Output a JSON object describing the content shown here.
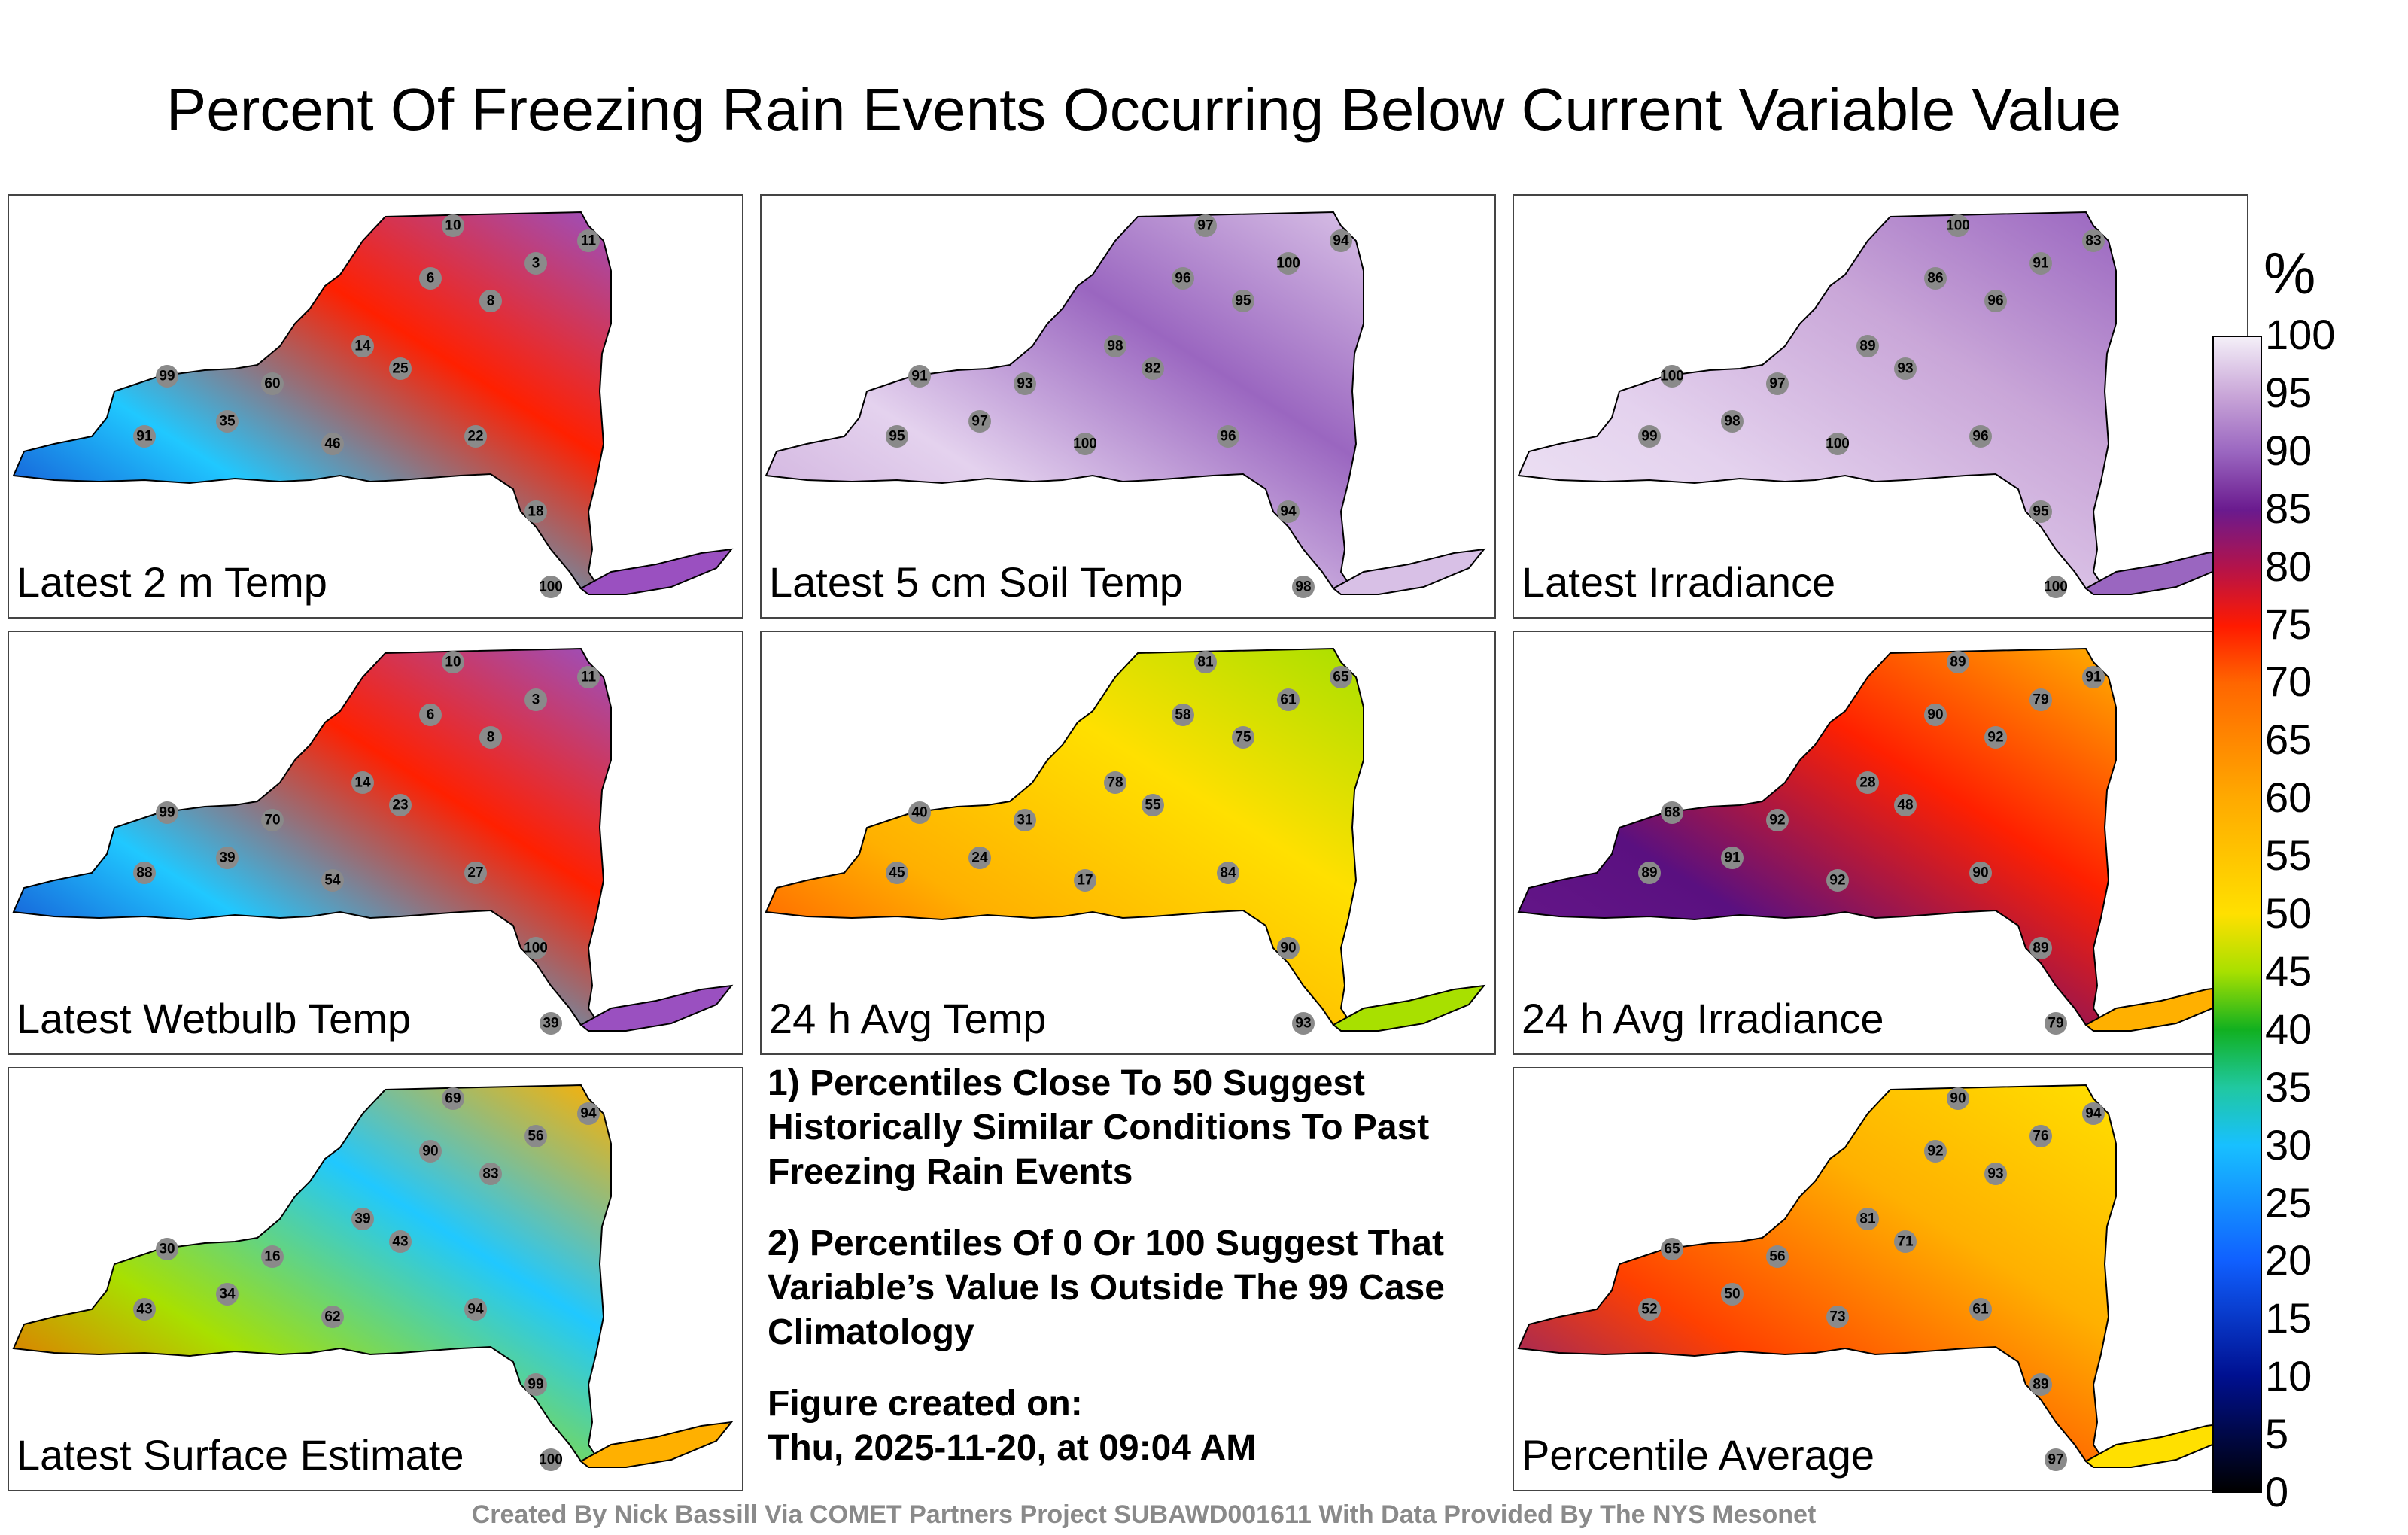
{
  "title": "Percent Of Freezing Rain Events Occurring Below Current Variable Value",
  "colorbar": {
    "unit": "%",
    "ticks": [
      "100",
      "95",
      "90",
      "85",
      "80",
      "75",
      "70",
      "65",
      "60",
      "55",
      "50",
      "45",
      "40",
      "35",
      "30",
      "25",
      "20",
      "15",
      "10",
      "5",
      "0"
    ]
  },
  "panels": [
    {
      "label": "Latest 2 m Temp",
      "colors": [
        "#1020c0",
        "#20c8ff",
        "#ff2000",
        "#9a50c0"
      ],
      "stations": [
        "10",
        "8",
        "11",
        "6",
        "3",
        "14",
        "25",
        "99",
        "60",
        "35",
        "91",
        "46",
        "22",
        "18",
        "100"
      ]
    },
    {
      "label": "Latest 5 cm Soil Temp",
      "colors": [
        "#c9a6d8",
        "#e4d2ee",
        "#9a66c0",
        "#d8c0e6"
      ],
      "stations": [
        "97",
        "95",
        "94",
        "96",
        "100",
        "98",
        "82",
        "91",
        "93",
        "97",
        "95",
        "100",
        "96",
        "94",
        "98"
      ]
    },
    {
      "label": "Latest Irradiance",
      "colors": [
        "#f0e8f6",
        "#e4d2ee",
        "#c9a6d8",
        "#9a66c0"
      ],
      "stations": [
        "100",
        "96",
        "83",
        "86",
        "91",
        "89",
        "93",
        "100",
        "97",
        "98",
        "99",
        "100",
        "96",
        "95",
        "100"
      ]
    },
    {
      "label": "Latest Wetbulb Temp",
      "colors": [
        "#1020c0",
        "#20c8ff",
        "#ff2000",
        "#9a50c0"
      ],
      "stations": [
        "10",
        "8",
        "11",
        "6",
        "3",
        "14",
        "23",
        "99",
        "70",
        "39",
        "88",
        "54",
        "27",
        "100",
        "39"
      ]
    },
    {
      "label": "24 h Avg Temp",
      "colors": [
        "#ff4000",
        "#ffb000",
        "#ffe000",
        "#a8e000"
      ],
      "stations": [
        "81",
        "75",
        "65",
        "58",
        "61",
        "78",
        "55",
        "40",
        "31",
        "24",
        "45",
        "17",
        "84",
        "90",
        "93"
      ]
    },
    {
      "label": "24 h Avg Irradiance",
      "colors": [
        "#6a1a8e",
        "#5a1080",
        "#ff2000",
        "#ffb000"
      ],
      "stations": [
        "89",
        "92",
        "91",
        "90",
        "79",
        "28",
        "48",
        "68",
        "92",
        "91",
        "89",
        "92",
        "90",
        "89",
        "79"
      ]
    },
    {
      "label": "Latest Surface Estimate",
      "colors": [
        "#ff4000",
        "#a8e000",
        "#20c8ff",
        "#ffb000"
      ],
      "stations": [
        "69",
        "83",
        "94",
        "90",
        "56",
        "39",
        "43",
        "30",
        "16",
        "34",
        "43",
        "62",
        "94",
        "99",
        "100"
      ]
    },
    {
      "label": "Percentile Average",
      "colors": [
        "#6a1a8e",
        "#ff4000",
        "#ffb000",
        "#ffe000"
      ],
      "stations": [
        "90",
        "93",
        "94",
        "92",
        "76",
        "81",
        "71",
        "65",
        "56",
        "50",
        "52",
        "73",
        "61",
        "89",
        "97"
      ]
    }
  ],
  "notes": {
    "note1": "1) Percentiles Close To 50 Suggest Historically Similar Conditions To Past Freezing Rain Events",
    "note2": "2) Percentiles Of 0 Or 100 Suggest That Variable’s Value Is Outside The 99 Case Climatology",
    "created_label": "Figure created on:",
    "created_date": "Thu, 2025-11-20, at 09:04 AM"
  },
  "footer": "Created By Nick Bassill Via COMET Partners Project SUBAWD001611 With Data Provided By The NYS Mesonet"
}
